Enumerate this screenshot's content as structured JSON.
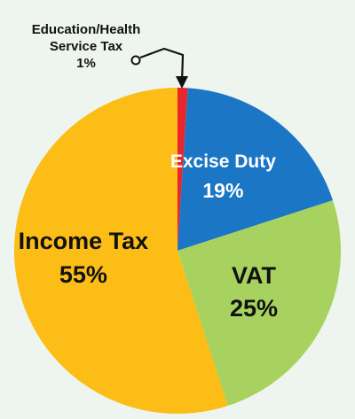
{
  "chart_data": {
    "type": "pie",
    "slices": [
      {
        "label": "Education/Health Service Tax",
        "label_lines": [
          "Education/Health",
          "Service Tax"
        ],
        "value": 1,
        "value_label": "1%",
        "color": "#e8262b",
        "label_placement": "callout"
      },
      {
        "label": "Excise Duty",
        "label_lines": [
          "Excise Duty"
        ],
        "value": 19,
        "value_label": "19%",
        "color": "#1b76c6",
        "label_placement": "inside",
        "text_color": "#ffffff"
      },
      {
        "label": "VAT",
        "label_lines": [
          "VAT"
        ],
        "value": 25,
        "value_label": "25%",
        "color": "#a8d25f",
        "label_placement": "inside",
        "text_color": "#111111"
      },
      {
        "label": "Income Tax",
        "label_lines": [
          "Income Tax"
        ],
        "value": 55,
        "value_label": "55%",
        "color": "#fbbd16",
        "label_placement": "inside",
        "text_color": "#111111"
      }
    ],
    "start_angle_deg": 0,
    "direction": "clockwise",
    "legend": "none"
  }
}
